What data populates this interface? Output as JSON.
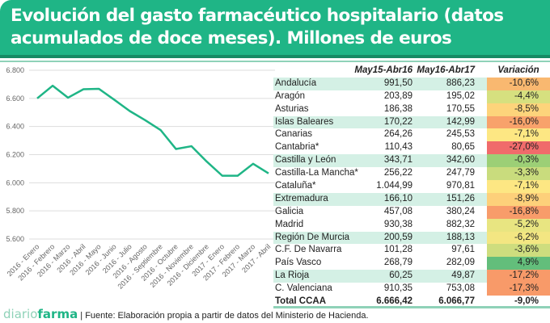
{
  "title": "Evolución del gasto farmacéutico hospitalario (datos acumulados de doce meses). Millones de euros",
  "title_line1": "Evolución del gasto farmacéutico hospitalario (datos",
  "title_line2": "acumulados de doce meses). Millones de euros",
  "colors": {
    "brand": "#1fb586",
    "line": "#1fb586",
    "highlight_row": "#d4f0e5"
  },
  "chart_data": {
    "type": "line",
    "categories": [
      "2016 - Enero",
      "2016 - Febrero",
      "2016 - Marzo",
      "2016 - Abril",
      "2016 - Mayo",
      "2016 - Junio",
      "2016 - Julio",
      "2016 - Agosto",
      "2016 - Septiembre",
      "2016 - Octubre",
      "2016 - Noviembre",
      "2016 - Diciembre",
      "2017 - Enero",
      "2017 - Febrero",
      "2017 - Marzo",
      "2017 - Abril"
    ],
    "values": [
      6600,
      6690,
      6605,
      6665,
      6668,
      6590,
      6510,
      6445,
      6375,
      6240,
      6260,
      6150,
      6050,
      6050,
      6135,
      6067
    ],
    "ylim": [
      5600,
      6800
    ],
    "yticks": [
      "5.600",
      "5.800",
      "6.000",
      "6.200",
      "6.400",
      "6.600",
      "6.800"
    ],
    "grid": true
  },
  "table": {
    "headers": [
      "",
      "May15-Abr16",
      "May16-Abr17",
      "Variación"
    ],
    "rows": [
      {
        "name": "Andalucía",
        "a": "991,50",
        "b": "886,23",
        "v": "-10,6%",
        "color": "#f9b870",
        "hl": true
      },
      {
        "name": "Aragón",
        "a": "203,89",
        "b": "195,02",
        "v": "-4,4%",
        "color": "#d6e07f",
        "hl": false
      },
      {
        "name": "Asturias",
        "a": "186,38",
        "b": "170,55",
        "v": "-8,5%",
        "color": "#fdd47b",
        "hl": false
      },
      {
        "name": "Islas Baleares",
        "a": "170,22",
        "b": "142,99",
        "v": "-16,0%",
        "color": "#f8a26b",
        "hl": true
      },
      {
        "name": "Canarias",
        "a": "264,26",
        "b": "245,53",
        "v": "-7,1%",
        "color": "#fde783",
        "hl": false
      },
      {
        "name": "Cantabria*",
        "a": "110,43",
        "b": "80,65",
        "v": "-27,0%",
        "color": "#f06b6b",
        "hl": false
      },
      {
        "name": "Castilla y León",
        "a": "343,71",
        "b": "342,60",
        "v": "-0,3%",
        "color": "#9ccf76",
        "hl": true
      },
      {
        "name": "Castilla-La Mancha*",
        "a": "256,22",
        "b": "247,79",
        "v": "-3,3%",
        "color": "#c9dc7d",
        "hl": false
      },
      {
        "name": "Cataluña*",
        "a": "1.044,99",
        "b": "970,81",
        "v": "-7,1%",
        "color": "#fde783",
        "hl": false
      },
      {
        "name": "Extremadura",
        "a": "166,10",
        "b": "151,26",
        "v": "-8,9%",
        "color": "#fdd07a",
        "hl": true
      },
      {
        "name": "Galicia",
        "a": "457,08",
        "b": "380,24",
        "v": "-16,8%",
        "color": "#f89c6a",
        "hl": false
      },
      {
        "name": "Madrid",
        "a": "930,38",
        "b": "882,32",
        "v": "-5,2%",
        "color": "#e8e581",
        "hl": false
      },
      {
        "name": "Región De Murcia",
        "a": "200,59",
        "b": "188,13",
        "v": "-6,2%",
        "color": "#f3e682",
        "hl": true
      },
      {
        "name": "C.F. De Navarra",
        "a": "101,28",
        "b": "97,61",
        "v": "-3,6%",
        "color": "#cedd7e",
        "hl": false
      },
      {
        "name": "País Vasco",
        "a": "268,79",
        "b": "282,09",
        "v": "4,9%",
        "color": "#63be7b",
        "hl": false
      },
      {
        "name": "La Rioja",
        "a": "60,25",
        "b": "49,87",
        "v": "-17,2%",
        "color": "#f89a69",
        "hl": true
      },
      {
        "name": "C. Valenciana",
        "a": "910,35",
        "b": "753,08",
        "v": "-17,3%",
        "color": "#f89a69",
        "hl": false
      }
    ],
    "total": {
      "name": "Total CCAA",
      "a": "6.666,42",
      "b": "6.066,77",
      "v": "-9,0%"
    }
  },
  "footer": {
    "logo_a": "diario",
    "logo_b": "farma",
    "source": "| Fuente:  Elaboración propia a partir de datos del Ministerio de Hacienda."
  }
}
